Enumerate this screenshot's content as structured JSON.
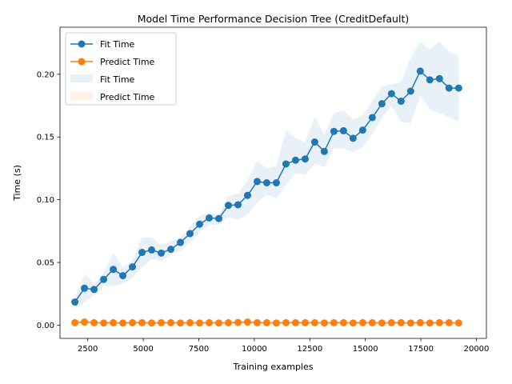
{
  "chart_data": {
    "type": "line",
    "title": "Model Time Performance Decision Tree (CreditDefault)",
    "xlabel": "Training examples",
    "ylabel": "Time (s)",
    "xlim": [
      1250,
      20450
    ],
    "ylim": [
      -0.0105,
      0.2375
    ],
    "xticks": [
      2500,
      5000,
      7500,
      10000,
      12500,
      15000,
      17500,
      20000
    ],
    "xtick_labels": [
      "2500",
      "5000",
      "7500",
      "10000",
      "12500",
      "15000",
      "17500",
      "20000"
    ],
    "yticks": [
      0.0,
      0.05,
      0.1,
      0.15,
      0.2
    ],
    "ytick_labels": [
      "0.00",
      "0.05",
      "0.10",
      "0.15",
      "0.20"
    ],
    "grid": false,
    "legend_position": "top-left",
    "x": [
      1920,
      2352,
      2784,
      3216,
      3648,
      4080,
      4512,
      4944,
      5376,
      5808,
      6240,
      6672,
      7104,
      7536,
      7968,
      8400,
      8832,
      9264,
      9696,
      10128,
      10560,
      10992,
      11424,
      11856,
      12288,
      12720,
      13152,
      13584,
      14016,
      14448,
      14880,
      15312,
      15744,
      16176,
      16608,
      17040,
      17472,
      17904,
      18336,
      18768,
      19200
    ],
    "series": [
      {
        "name": "Fit Time",
        "color": "#1f77b4",
        "marker": "circle",
        "values": [
          0.0185,
          0.0295,
          0.0285,
          0.0365,
          0.0445,
          0.0395,
          0.0465,
          0.058,
          0.06,
          0.0575,
          0.0605,
          0.066,
          0.073,
          0.0805,
          0.0855,
          0.085,
          0.0955,
          0.096,
          0.1035,
          0.1145,
          0.1135,
          0.1135,
          0.1285,
          0.1315,
          0.1325,
          0.146,
          0.1385,
          0.1545,
          0.155,
          0.149,
          0.1555,
          0.1655,
          0.1765,
          0.1845,
          0.1785,
          0.1865,
          0.2025,
          0.1955,
          0.1965,
          0.189,
          0.189
        ]
      },
      {
        "name": "Predict Time",
        "color": "#ff7f0e",
        "marker": "circle",
        "values": [
          0.002,
          0.0025,
          0.002,
          0.0018,
          0.002,
          0.0018,
          0.002,
          0.002,
          0.0018,
          0.002,
          0.002,
          0.0018,
          0.002,
          0.0018,
          0.002,
          0.0018,
          0.002,
          0.0022,
          0.0025,
          0.002,
          0.002,
          0.0018,
          0.002,
          0.002,
          0.002,
          0.002,
          0.0018,
          0.002,
          0.002,
          0.0018,
          0.002,
          0.002,
          0.0018,
          0.002,
          0.002,
          0.0018,
          0.002,
          0.0018,
          0.002,
          0.002,
          0.0018
        ]
      }
    ],
    "bands": [
      {
        "name": "Fit Time",
        "color": "#1f77b4",
        "opacity": 0.1,
        "lower": [
          0.013,
          0.018,
          0.024,
          0.031,
          0.031,
          0.033,
          0.038,
          0.046,
          0.053,
          0.051,
          0.056,
          0.059,
          0.066,
          0.074,
          0.08,
          0.08,
          0.086,
          0.084,
          0.088,
          0.098,
          0.104,
          0.101,
          0.112,
          0.121,
          0.12,
          0.129,
          0.126,
          0.141,
          0.141,
          0.138,
          0.142,
          0.152,
          0.165,
          0.175,
          0.162,
          0.161,
          0.183,
          0.172,
          0.169,
          0.166,
          0.162
        ],
        "upper": [
          0.021,
          0.041,
          0.033,
          0.042,
          0.058,
          0.046,
          0.052,
          0.07,
          0.07,
          0.064,
          0.067,
          0.07,
          0.079,
          0.087,
          0.09,
          0.088,
          0.103,
          0.105,
          0.115,
          0.131,
          0.125,
          0.127,
          0.155,
          0.149,
          0.146,
          0.166,
          0.152,
          0.169,
          0.171,
          0.164,
          0.167,
          0.179,
          0.19,
          0.192,
          0.194,
          0.213,
          0.226,
          0.22,
          0.226,
          0.218,
          0.215
        ]
      },
      {
        "name": "Predict Time",
        "color": "#ff7f0e",
        "opacity": 0.1,
        "lower": [
          0.001,
          0.0012,
          0.001,
          0.001,
          0.0012,
          0.001,
          0.0012,
          0.0012,
          0.001,
          0.0012,
          0.0012,
          0.001,
          0.0012,
          0.001,
          0.0012,
          0.001,
          0.0012,
          0.0012,
          0.0015,
          0.0012,
          0.0012,
          0.001,
          0.0012,
          0.0012,
          0.0012,
          0.0012,
          0.001,
          0.0012,
          0.0012,
          0.001,
          0.0012,
          0.0012,
          0.001,
          0.0012,
          0.0012,
          0.001,
          0.0012,
          0.001,
          0.0012,
          0.0012,
          0.001
        ],
        "upper": [
          0.003,
          0.0038,
          0.003,
          0.0028,
          0.003,
          0.0028,
          0.003,
          0.003,
          0.0028,
          0.003,
          0.003,
          0.0028,
          0.003,
          0.0028,
          0.003,
          0.0028,
          0.003,
          0.0032,
          0.0036,
          0.003,
          0.003,
          0.0028,
          0.003,
          0.003,
          0.003,
          0.003,
          0.0028,
          0.003,
          0.003,
          0.0028,
          0.003,
          0.003,
          0.0028,
          0.003,
          0.003,
          0.0028,
          0.003,
          0.0028,
          0.003,
          0.003,
          0.0028
        ]
      }
    ],
    "legend": [
      {
        "label": "Fit Time",
        "kind": "line",
        "color": "#1f77b4"
      },
      {
        "label": "Predict Time",
        "kind": "line",
        "color": "#ff7f0e"
      },
      {
        "label": "Fit Time",
        "kind": "band",
        "color": "#1f77b4"
      },
      {
        "label": "Predict Time",
        "kind": "band",
        "color": "#ff7f0e"
      }
    ]
  }
}
